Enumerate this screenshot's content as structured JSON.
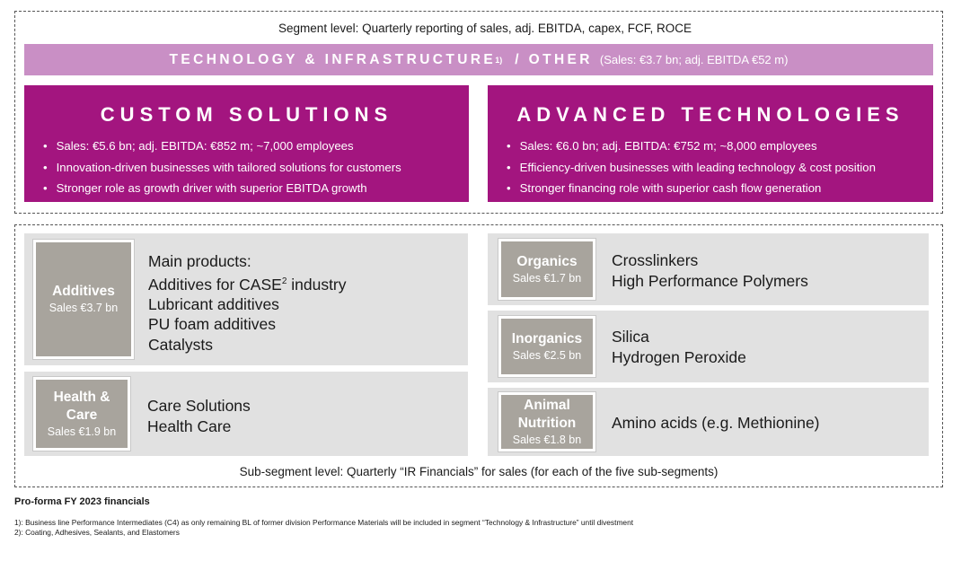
{
  "segment_level_caption": "Segment level: Quarterly reporting of sales, adj. EBITDA, capex, FCF, ROCE",
  "tech_infra": {
    "name": "TECHNOLOGY & INFRASTRUCTURE",
    "footnote_ref": "1)",
    "other": "/  OTHER",
    "sales_text": "(Sales: €3.7 bn; adj. EBITDA €52 m)"
  },
  "segments": [
    {
      "title": "CUSTOM SOLUTIONS",
      "bullets": [
        "Sales: €5.6 bn; adj. EBITDA: €852 m; ~7,000 employees",
        "Innovation-driven businesses with tailored solutions for customers",
        "Stronger role as growth driver with superior EBITDA growth"
      ]
    },
    {
      "title": "ADVANCED TECHNOLOGIES",
      "bullets": [
        "Sales: €6.0 bn; adj. EBITDA: €752 m; ~8,000 employees",
        "Efficiency-driven businesses with leading technology & cost position",
        "Stronger financing role with superior cash flow generation"
      ]
    }
  ],
  "sub_segments": {
    "additives": {
      "name": "Additives",
      "sales": "Sales €3.7 bn",
      "products": [
        "Main products:",
        "Additives for CASE",
        "Lubricant additives",
        "PU foam additives",
        "Catalysts"
      ],
      "case_footnote": "2",
      "case_suffix": " industry"
    },
    "health_care": {
      "name_line1": "Health &",
      "name_line2": "Care",
      "sales": "Sales €1.9 bn",
      "products": [
        "Care Solutions",
        "Health Care"
      ]
    },
    "organics": {
      "name": "Organics",
      "sales": "Sales €1.7 bn",
      "products": [
        "Crosslinkers",
        "High Performance Polymers"
      ]
    },
    "inorganics": {
      "name": "Inorganics",
      "sales": "Sales €2.5 bn",
      "products": [
        "Silica",
        "Hydrogen Peroxide"
      ]
    },
    "animal_nutrition": {
      "name_line1": "Animal",
      "name_line2": "Nutrition",
      "sales": "Sales €1.8 bn",
      "products": [
        "Amino acids (e.g. Methionine)"
      ]
    }
  },
  "sub_segment_caption": "Sub-segment level: Quarterly “IR Financials” for sales (for each of the five sub-segments)",
  "proforma_label": "Pro-forma FY 2023 financials",
  "footnotes": [
    "1): Business line Performance Intermediates (C4) as only remaining BL of former division Performance Materials will be included in segment “Technology & Infrastructure” until divestment",
    "2): Coating, Adhesives, Sealants, and Elastomers"
  ],
  "colors": {
    "segment_purple": "#a3157f",
    "band_pink": "#c98fc5",
    "tile_gray": "#a8a49d",
    "panel_gray": "#e1e1e1"
  }
}
